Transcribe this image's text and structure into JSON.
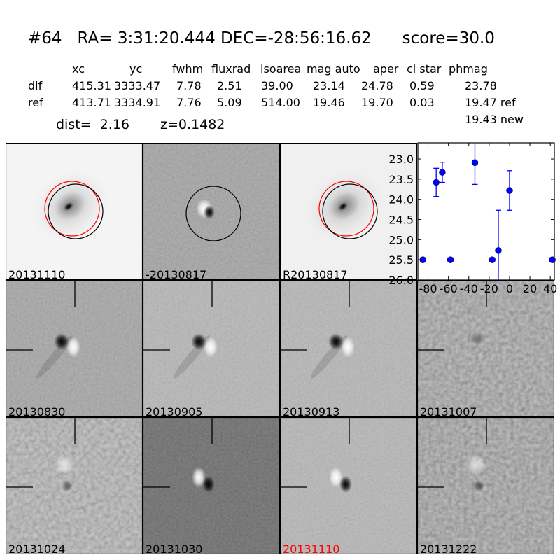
{
  "header": {
    "title": "#64   RA= 3:31:20.444 DEC=-28:56:16.62      score=30.0",
    "columns": [
      "xc",
      "yc",
      "fwhm",
      "fluxrad",
      "isoarea",
      "mag auto",
      "aper",
      "cl star",
      "phmag"
    ],
    "rows": [
      {
        "label": "dif",
        "values": [
          "415.31",
          "3333.47",
          "7.78",
          "2.51",
          "39.00",
          "23.14",
          "24.78",
          "0.59",
          "23.78"
        ]
      },
      {
        "label": "ref",
        "values": [
          "413.71",
          "3334.91",
          "7.76",
          "5.09",
          "514.00",
          "19.46",
          "19.70",
          "0.03",
          "19.47 ref"
        ]
      }
    ],
    "new_mag": "19.43 new",
    "dist": "dist=  2.16",
    "z": "z=0.1482"
  },
  "panels": [
    {
      "label": "20131110",
      "kind": "galaxy",
      "bg": "#f4f4f4",
      "label_color": "#000000"
    },
    {
      "label": "-20130817",
      "kind": "template-diff",
      "bg": "#9a9a9a",
      "label_color": "#000000"
    },
    {
      "label": "R20130817",
      "kind": "galaxy",
      "bg": "#f0f0f0",
      "label_color": "#000000"
    },
    {
      "label": "20130830",
      "kind": "dipole",
      "bg": "#9c9c9c",
      "label_color": "#000000"
    },
    {
      "label": "20130905",
      "kind": "dipole",
      "bg": "#acacac",
      "label_color": "#000000"
    },
    {
      "label": "20130913",
      "kind": "dipole",
      "bg": "#acacac",
      "label_color": "#000000"
    },
    {
      "label": "20131007",
      "kind": "noise",
      "bg": "#8c8c8c",
      "label_color": "#000000"
    },
    {
      "label": "20131024",
      "kind": "faint",
      "bg": "#9a9a9a",
      "label_color": "#000000"
    },
    {
      "label": "20131030",
      "kind": "dipole-rev",
      "bg": "#6a6a6a",
      "label_color": "#000000"
    },
    {
      "label": "20131110",
      "kind": "dipole-rev",
      "bg": "#acacac",
      "label_color": "#ff0000"
    },
    {
      "label": "20131222",
      "kind": "faint",
      "bg": "#8a8a8a",
      "label_color": "#000000"
    }
  ],
  "colors": {
    "circle_new": "#ff0000",
    "circle_ref": "#000000",
    "points": "#0000ff"
  },
  "chart_data": {
    "type": "scatter",
    "title": "",
    "xlabel": "",
    "ylabel": "",
    "xlim": [
      -90,
      44
    ],
    "ylim": [
      26.0,
      22.6
    ],
    "y_inverted": true,
    "xticks": [
      "-80",
      "-60",
      "-40",
      "-20",
      "0",
      "20",
      "40"
    ],
    "yticks": [
      "23.0",
      "23.5",
      "24.0",
      "24.5",
      "25.0",
      "25.5",
      "26.0"
    ],
    "grid": false,
    "points": [
      {
        "x": -85,
        "y": 25.5,
        "err": 0.05,
        "limit": true
      },
      {
        "x": -72,
        "y": 23.58,
        "err": 0.35
      },
      {
        "x": -66,
        "y": 23.33,
        "err": 0.25
      },
      {
        "x": -58,
        "y": 25.5,
        "err": 0.05,
        "limit": true
      },
      {
        "x": -34,
        "y": 23.09,
        "err": 0.54
      },
      {
        "x": -17,
        "y": 25.5,
        "err": 0.05,
        "limit": true
      },
      {
        "x": -11,
        "y": 25.27,
        "err": 1.0
      },
      {
        "x": 0,
        "y": 23.78,
        "err": 0.49
      },
      {
        "x": 42,
        "y": 25.5,
        "err": 0.05,
        "limit": true
      }
    ]
  }
}
